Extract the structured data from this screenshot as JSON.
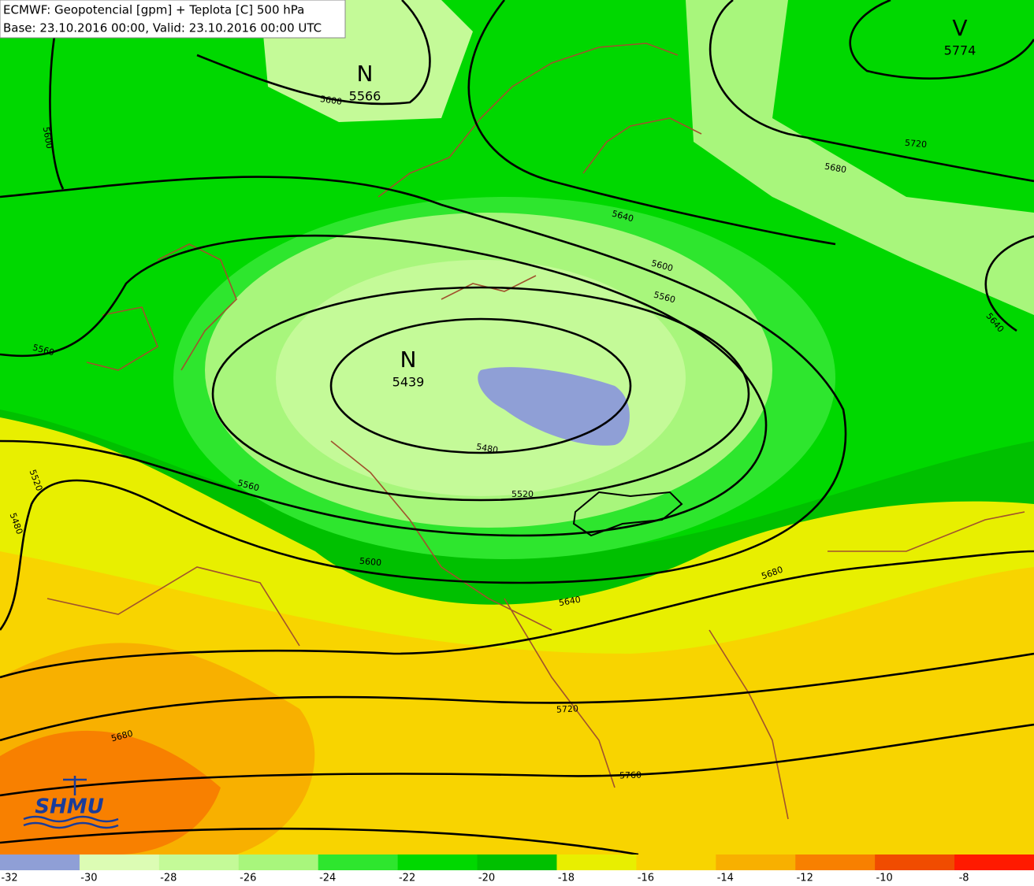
{
  "header": {
    "title": "ECMWF: Geopotencial [gpm] + Teplota [C] 500 hPa",
    "subtitle": "Base: 23.10.2016 00:00, Valid: 23.10.2016 00:00 UTC"
  },
  "centers": [
    {
      "letter": "N",
      "value": 5566
    },
    {
      "letter": "N",
      "value": 5439
    },
    {
      "letter": "V",
      "value": 5774
    }
  ],
  "contour_labels": [
    5600,
    5600,
    5560,
    5520,
    5480,
    5640,
    5600,
    5560,
    5640,
    5720,
    5680,
    5480,
    5520,
    5560,
    5600,
    5640,
    5680,
    5720,
    5760,
    5680
  ],
  "logo": {
    "text": "SHMU"
  },
  "colorbar": {
    "levels": [
      -32,
      -30,
      -28,
      -26,
      -24,
      -22,
      -20,
      -18,
      -16,
      -14,
      -12,
      -10,
      -8
    ],
    "colors": [
      "#8f9fd6",
      "#dcfcb4",
      "#c4fa98",
      "#a8f67c",
      "#2ee62e",
      "#00d800",
      "#00c000",
      "#e8ef00",
      "#f8d400",
      "#f8b000",
      "#f88000",
      "#f04c00",
      "#ff1a00"
    ]
  }
}
